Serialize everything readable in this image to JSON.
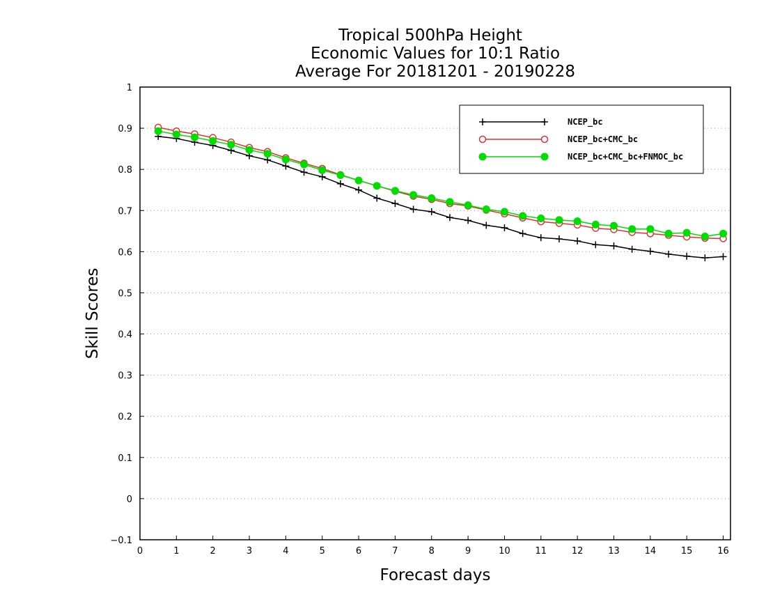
{
  "chart_data": {
    "type": "line",
    "title": [
      "Tropical 500hPa Height",
      "Economic Values for 10:1 Ratio",
      "Average For 20181201 - 20190228"
    ],
    "xlabel": "Forecast days",
    "ylabel": "Skill Scores",
    "xlim": [
      0,
      16.2
    ],
    "ylim": [
      -0.1,
      1
    ],
    "xticks": [
      "0",
      "1",
      "2",
      "3",
      "4",
      "5",
      "6",
      "7",
      "8",
      "9",
      "10",
      "11",
      "12",
      "13",
      "14",
      "15",
      "16"
    ],
    "yticks": [
      "−0.1",
      "0",
      "0.1",
      "0.2",
      "0.3",
      "0.4",
      "0.5",
      "0.6",
      "0.7",
      "0.8",
      "0.9",
      "1"
    ],
    "grid": true,
    "legend_position": "top-right",
    "x": [
      0.5,
      1,
      1.5,
      2,
      2.5,
      3,
      3.5,
      4,
      4.5,
      5,
      5.5,
      6,
      6.5,
      7,
      7.5,
      8,
      8.5,
      9,
      9.5,
      10,
      10.5,
      11,
      11.5,
      12,
      12.5,
      13,
      13.5,
      14,
      14.5,
      15,
      15.5,
      16
    ],
    "series": [
      {
        "name": "NCEP_bc",
        "color": "#000000",
        "marker": "plus",
        "values": [
          0.88,
          0.875,
          0.866,
          0.858,
          0.846,
          0.833,
          0.823,
          0.808,
          0.793,
          0.782,
          0.765,
          0.75,
          0.73,
          0.717,
          0.703,
          0.697,
          0.683,
          0.676,
          0.664,
          0.658,
          0.644,
          0.634,
          0.631,
          0.626,
          0.617,
          0.614,
          0.606,
          0.601,
          0.594,
          0.589,
          0.585,
          0.588
        ]
      },
      {
        "name": "NCEP_bc+CMC_bc",
        "color": "#e03030",
        "marker": "open-circle",
        "values": [
          0.902,
          0.893,
          0.886,
          0.877,
          0.866,
          0.853,
          0.843,
          0.828,
          0.815,
          0.802,
          0.787,
          0.773,
          0.76,
          0.747,
          0.735,
          0.727,
          0.717,
          0.711,
          0.701,
          0.692,
          0.682,
          0.673,
          0.669,
          0.665,
          0.657,
          0.654,
          0.647,
          0.644,
          0.64,
          0.636,
          0.633,
          0.632
        ]
      },
      {
        "name": "NCEP_bc+CMC_bc+FNMOC_bc",
        "color": "#00dd00",
        "marker": "filled-circle",
        "values": [
          0.893,
          0.885,
          0.878,
          0.869,
          0.86,
          0.847,
          0.838,
          0.824,
          0.812,
          0.798,
          0.786,
          0.773,
          0.76,
          0.748,
          0.738,
          0.73,
          0.721,
          0.713,
          0.703,
          0.697,
          0.687,
          0.681,
          0.677,
          0.674,
          0.666,
          0.663,
          0.655,
          0.655,
          0.644,
          0.646,
          0.637,
          0.644
        ]
      }
    ]
  }
}
